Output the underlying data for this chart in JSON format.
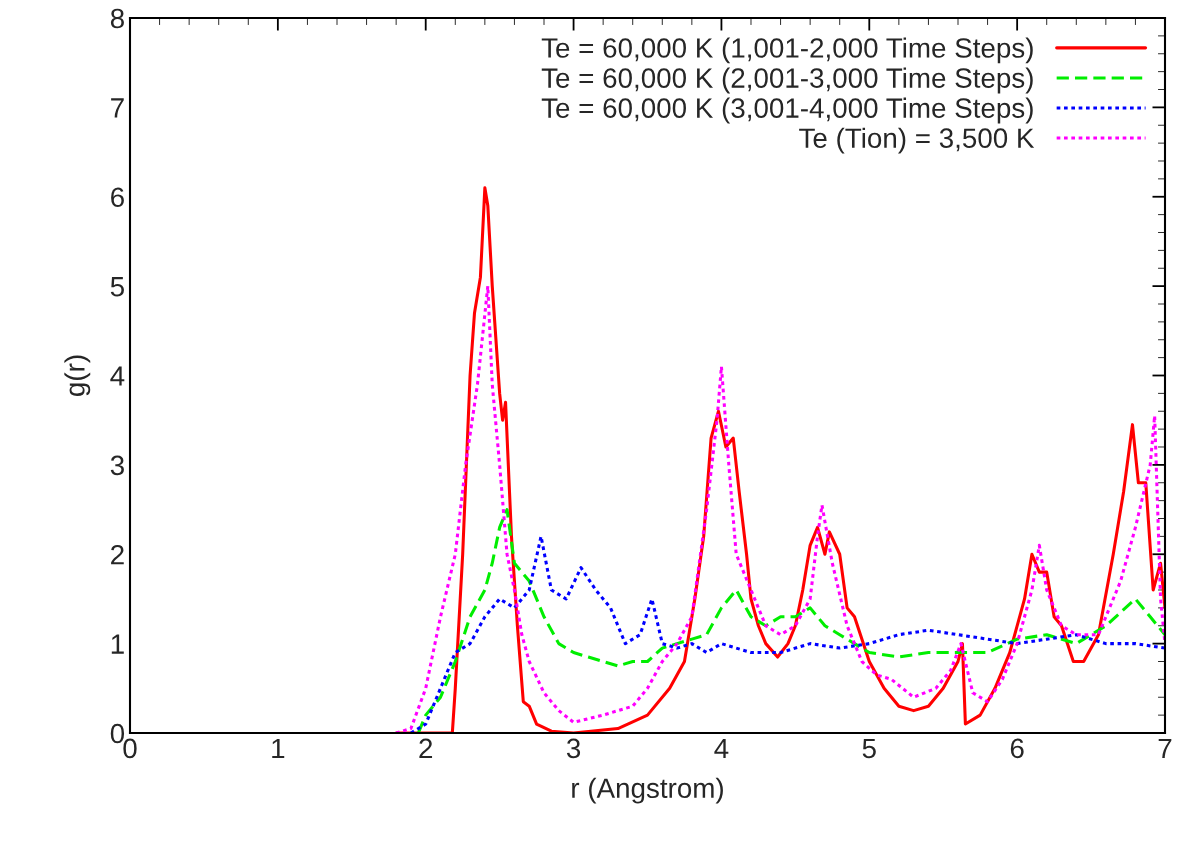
{
  "chart_data": {
    "type": "line",
    "xlabel": "r (Angstrom)",
    "ylabel": "g(r)",
    "xlim": [
      0,
      7
    ],
    "ylim": [
      0,
      8
    ],
    "xticks": [
      0,
      1,
      2,
      3,
      4,
      5,
      6,
      7
    ],
    "yticks": [
      0,
      1,
      2,
      3,
      4,
      5,
      6,
      7,
      8
    ],
    "grid": false,
    "legend": "top right",
    "marker": "none",
    "series": [
      {
        "name": "Te = 60,000 K (1,001-2,000 Time Steps)",
        "color": "#ff0000",
        "line_style": "solid",
        "x": [
          1.8,
          2.18,
          2.2,
          2.25,
          2.3,
          2.33,
          2.37,
          2.4,
          2.42,
          2.45,
          2.5,
          2.52,
          2.54,
          2.58,
          2.62,
          2.66,
          2.7,
          2.75,
          2.85,
          3.0,
          3.3,
          3.5,
          3.65,
          3.75,
          3.82,
          3.88,
          3.93,
          3.98,
          4.03,
          4.08,
          4.12,
          4.17,
          4.2,
          4.25,
          4.3,
          4.38,
          4.45,
          4.5,
          4.55,
          4.6,
          4.65,
          4.7,
          4.73,
          4.8,
          4.85,
          4.9,
          5.0,
          5.1,
          5.2,
          5.3,
          5.4,
          5.5,
          5.6,
          5.63,
          5.65,
          5.75,
          5.85,
          5.95,
          6.05,
          6.1,
          6.15,
          6.2,
          6.25,
          6.3,
          6.38,
          6.45,
          6.55,
          6.65,
          6.72,
          6.78,
          6.82,
          6.87,
          6.92,
          6.97,
          7.0
        ],
        "values": [
          0,
          0,
          0.5,
          2,
          4,
          4.7,
          5.1,
          6.1,
          5.9,
          5.0,
          3.8,
          3.5,
          3.7,
          2.2,
          1.2,
          0.35,
          0.3,
          0.1,
          0.02,
          0,
          0.05,
          0.2,
          0.5,
          0.8,
          1.5,
          2.2,
          3.3,
          3.6,
          3.2,
          3.3,
          2.7,
          2.0,
          1.5,
          1.2,
          1.0,
          0.85,
          1.0,
          1.2,
          1.6,
          2.1,
          2.3,
          2.0,
          2.25,
          2.0,
          1.4,
          1.3,
          0.8,
          0.5,
          0.3,
          0.25,
          0.3,
          0.5,
          0.8,
          1.0,
          0.1,
          0.2,
          0.5,
          0.9,
          1.5,
          2.0,
          1.8,
          1.8,
          1.3,
          1.2,
          0.8,
          0.8,
          1.1,
          2.0,
          2.7,
          3.45,
          2.8,
          2.8,
          1.6,
          1.9,
          1.4
        ]
      },
      {
        "name": "Te = 60,000 K (2,001-3,000 Time Steps)",
        "color": "#00ee00",
        "line_style": "dashed",
        "x": [
          1.95,
          2.0,
          2.1,
          2.2,
          2.3,
          2.4,
          2.45,
          2.5,
          2.55,
          2.6,
          2.7,
          2.8,
          2.9,
          3.0,
          3.1,
          3.2,
          3.3,
          3.4,
          3.5,
          3.6,
          3.7,
          3.8,
          3.9,
          4.0,
          4.1,
          4.2,
          4.3,
          4.4,
          4.5,
          4.6,
          4.7,
          4.8,
          4.9,
          5.0,
          5.2,
          5.4,
          5.6,
          5.8,
          6.0,
          6.2,
          6.4,
          6.6,
          6.8,
          6.9,
          7.0
        ],
        "values": [
          0,
          0.2,
          0.4,
          0.8,
          1.3,
          1.6,
          1.9,
          2.3,
          2.5,
          1.9,
          1.7,
          1.3,
          1.0,
          0.9,
          0.85,
          0.8,
          0.75,
          0.8,
          0.8,
          0.95,
          1.0,
          1.05,
          1.1,
          1.4,
          1.6,
          1.3,
          1.2,
          1.3,
          1.3,
          1.4,
          1.2,
          1.1,
          1.0,
          0.9,
          0.85,
          0.9,
          0.9,
          0.9,
          1.05,
          1.1,
          1.0,
          1.2,
          1.5,
          1.3,
          1.1
        ]
      },
      {
        "name": "Te = 60,000 K (3,001-4,000 Time Steps)",
        "color": "#0000ff",
        "line_style": "dotted",
        "x": [
          1.9,
          2.0,
          2.1,
          2.2,
          2.3,
          2.4,
          2.5,
          2.6,
          2.7,
          2.78,
          2.85,
          2.95,
          3.05,
          3.15,
          3.25,
          3.35,
          3.45,
          3.53,
          3.6,
          3.7,
          3.8,
          3.9,
          4.0,
          4.2,
          4.4,
          4.6,
          4.8,
          5.0,
          5.2,
          5.4,
          5.6,
          5.8,
          6.0,
          6.2,
          6.4,
          6.6,
          6.8,
          7.0
        ],
        "values": [
          0,
          0.1,
          0.5,
          0.9,
          1.0,
          1.3,
          1.5,
          1.4,
          1.6,
          2.2,
          1.6,
          1.5,
          1.85,
          1.6,
          1.4,
          1.0,
          1.1,
          1.5,
          1.0,
          0.95,
          1.0,
          0.9,
          1.0,
          0.9,
          0.9,
          1.0,
          0.95,
          1.0,
          1.1,
          1.15,
          1.1,
          1.05,
          1.0,
          1.05,
          1.1,
          1.0,
          1.0,
          0.95
        ]
      },
      {
        "name": "Te (Tion) = 3,500 K",
        "color": "#ff00ff",
        "line_style": "dotted",
        "x": [
          1.8,
          1.9,
          2.0,
          2.1,
          2.2,
          2.27,
          2.35,
          2.42,
          2.45,
          2.5,
          2.55,
          2.6,
          2.65,
          2.7,
          2.8,
          2.9,
          3.0,
          3.2,
          3.4,
          3.5,
          3.6,
          3.7,
          3.8,
          3.9,
          3.97,
          4.0,
          4.05,
          4.1,
          4.2,
          4.3,
          4.4,
          4.5,
          4.6,
          4.65,
          4.68,
          4.75,
          4.85,
          4.95,
          5.05,
          5.15,
          5.3,
          5.45,
          5.55,
          5.62,
          5.7,
          5.8,
          5.9,
          6.0,
          6.1,
          6.15,
          6.2,
          6.3,
          6.4,
          6.55,
          6.7,
          6.8,
          6.9,
          6.93,
          6.97,
          7.0
        ],
        "values": [
          0,
          0.05,
          0.5,
          1.3,
          2.0,
          3.0,
          3.9,
          5.0,
          3.9,
          3.0,
          2.0,
          1.6,
          1.1,
          0.8,
          0.45,
          0.25,
          0.12,
          0.2,
          0.3,
          0.5,
          0.8,
          1.0,
          1.3,
          2.5,
          3.5,
          4.1,
          3.0,
          2.0,
          1.6,
          1.2,
          1.1,
          1.2,
          1.5,
          2.2,
          2.55,
          1.9,
          1.2,
          0.8,
          0.65,
          0.6,
          0.4,
          0.5,
          0.7,
          1.0,
          0.45,
          0.35,
          0.6,
          1.0,
          1.6,
          2.1,
          1.6,
          1.2,
          1.1,
          1.1,
          1.7,
          2.3,
          3.0,
          3.55,
          1.5,
          1.0
        ]
      }
    ]
  }
}
